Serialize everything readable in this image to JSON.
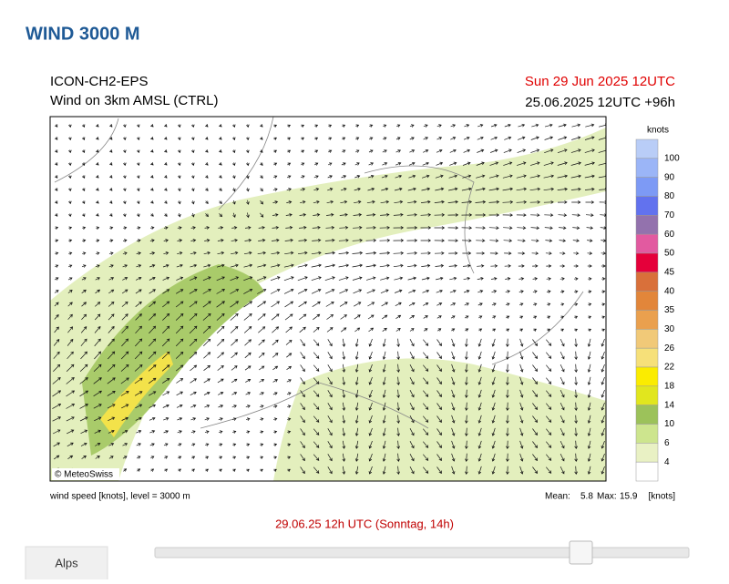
{
  "page_title": "WIND 3000 M",
  "map": {
    "model": "ICON-CH2-EPS",
    "subtitle": "Wind on 3km AMSL (CTRL)",
    "valid_time": "Sun 29 Jun 2025 12UTC",
    "run": "25.06.2025 12UTC +96h",
    "copyright": "© MeteoSwiss"
  },
  "legend": {
    "unit": "knots",
    "levels": [
      100,
      90,
      80,
      70,
      60,
      50,
      45,
      40,
      35,
      30,
      26,
      22,
      18,
      14,
      10,
      6,
      4
    ],
    "colors": [
      "#b9cdf7",
      "#9bb5f7",
      "#7d9af5",
      "#6272ee",
      "#9372ad",
      "#e25aa0",
      "#e5003a",
      "#d9703a",
      "#e2863a",
      "#eaa04e",
      "#f1c978",
      "#f6e079",
      "#fbec00",
      "#e1e61e",
      "#9cc25a",
      "#cde58e",
      "#e9f1c4",
      "#ffffff"
    ]
  },
  "footer": {
    "description": "wind speed [knots], level = 3000 m",
    "mean_label": "Mean:",
    "mean": 5.8,
    "max_label": "Max:",
    "max": 15.9,
    "unit": "[knots]"
  },
  "timeline": {
    "current": "29.06.25 12h UTC (Sonntag, 14h)",
    "region_button": "Alps"
  }
}
